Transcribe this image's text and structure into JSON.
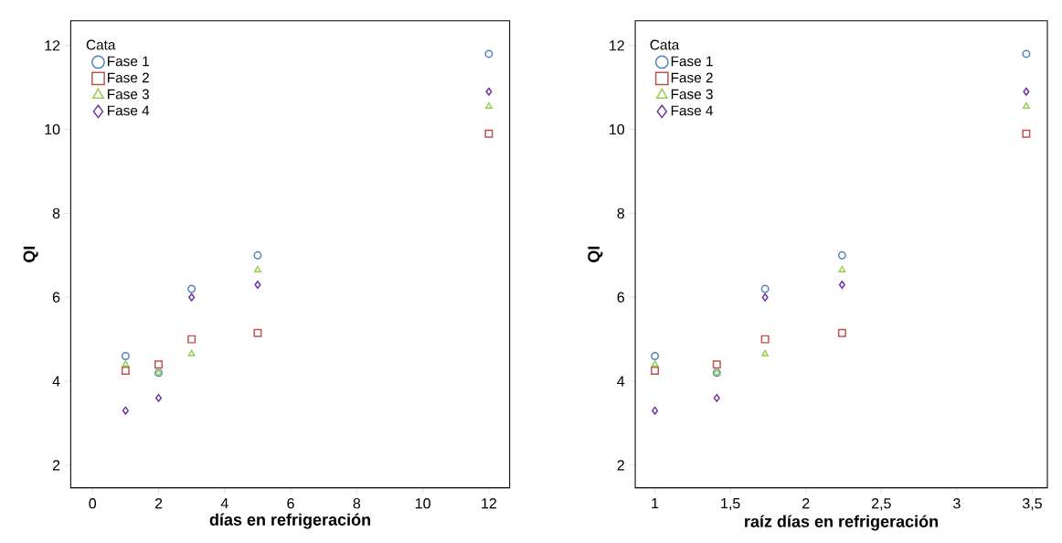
{
  "chart_data": [
    {
      "type": "scatter",
      "xlabel": "días en refrigeración",
      "ylabel": "QI",
      "legend_title": "Cata",
      "legend": "top left",
      "grid": false,
      "x": [
        1,
        2,
        3,
        5,
        12
      ],
      "xlim": [
        -0.66,
        12.63
      ],
      "ylim": [
        1.46,
        12.59
      ],
      "xticks": [
        0,
        2,
        4,
        6,
        8,
        10,
        12
      ],
      "yticks": [
        2,
        4,
        6,
        8,
        10,
        12
      ],
      "series": [
        {
          "name": "Fase 1",
          "color": "#4f81bd",
          "marker": "circle",
          "values": [
            4.6,
            4.2,
            6.2,
            7.0,
            11.8
          ]
        },
        {
          "name": "Fase 2",
          "color": "#c0504d",
          "marker": "square",
          "values": [
            4.25,
            4.4,
            5.0,
            5.15,
            9.9
          ]
        },
        {
          "name": "Fase 3",
          "color": "#92d050",
          "marker": "triangle",
          "values": [
            4.4,
            4.2,
            4.65,
            6.65,
            10.55
          ]
        },
        {
          "name": "Fase 4",
          "color": "#7030a0",
          "marker": "diamond",
          "values": [
            3.3,
            3.6,
            6.0,
            6.3,
            10.9
          ]
        }
      ]
    },
    {
      "type": "scatter",
      "xlabel": "raíz días en refrigeración",
      "ylabel": "QI",
      "legend_title": "Cata",
      "legend": "top left",
      "grid": false,
      "x": [
        1,
        1.41,
        1.73,
        2.24,
        3.46
      ],
      "xlim": [
        0.87,
        3.6
      ],
      "ylim": [
        1.46,
        12.59
      ],
      "xticks": [
        1,
        {
          "value": 1.5,
          "label": "1,5"
        },
        2,
        {
          "value": 2.5,
          "label": "2,5"
        },
        3,
        {
          "value": 3.5,
          "label": "3,5"
        }
      ],
      "yticks": [
        2,
        4,
        6,
        8,
        10,
        12
      ],
      "series": [
        {
          "name": "Fase 1",
          "color": "#4f81bd",
          "marker": "circle",
          "values": [
            4.6,
            4.2,
            6.2,
            7.0,
            11.8
          ]
        },
        {
          "name": "Fase 2",
          "color": "#c0504d",
          "marker": "square",
          "values": [
            4.25,
            4.4,
            5.0,
            5.15,
            9.9
          ]
        },
        {
          "name": "Fase 3",
          "color": "#92d050",
          "marker": "triangle",
          "values": [
            4.4,
            4.2,
            4.65,
            6.65,
            10.55
          ]
        },
        {
          "name": "Fase 4",
          "color": "#7030a0",
          "marker": "diamond",
          "values": [
            3.3,
            3.6,
            6.0,
            6.3,
            10.9
          ]
        }
      ]
    }
  ]
}
